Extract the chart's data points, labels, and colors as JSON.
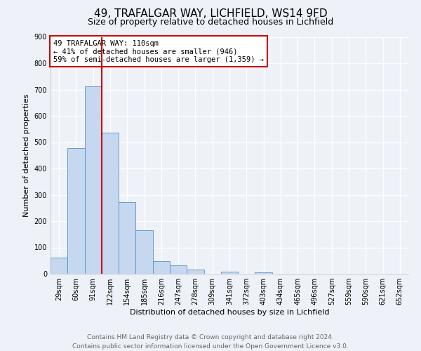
{
  "title": "49, TRAFALGAR WAY, LICHFIELD, WS14 9FD",
  "subtitle": "Size of property relative to detached houses in Lichfield",
  "xlabel": "Distribution of detached houses by size in Lichfield",
  "ylabel": "Number of detached properties",
  "bin_labels": [
    "29sqm",
    "60sqm",
    "91sqm",
    "122sqm",
    "154sqm",
    "185sqm",
    "216sqm",
    "247sqm",
    "278sqm",
    "309sqm",
    "341sqm",
    "372sqm",
    "403sqm",
    "434sqm",
    "465sqm",
    "496sqm",
    "527sqm",
    "559sqm",
    "590sqm",
    "621sqm",
    "652sqm"
  ],
  "bar_values": [
    62,
    478,
    713,
    537,
    271,
    165,
    47,
    33,
    15,
    0,
    8,
    0,
    6,
    0,
    0,
    0,
    0,
    0,
    0,
    0,
    0
  ],
  "bar_color": "#c5d8f0",
  "bar_edge_color": "#5a8fc3",
  "vline_color": "#cc0000",
  "vline_x": 2.5,
  "ylim": [
    0,
    900
  ],
  "yticks": [
    0,
    100,
    200,
    300,
    400,
    500,
    600,
    700,
    800,
    900
  ],
  "annotation_text": "49 TRAFALGAR WAY: 110sqm\n← 41% of detached houses are smaller (946)\n59% of semi-detached houses are larger (1,359) →",
  "annotation_box_color": "#ffffff",
  "annotation_box_edge": "#cc0000",
  "footer_line1": "Contains HM Land Registry data © Crown copyright and database right 2024.",
  "footer_line2": "Contains public sector information licensed under the Open Government Licence v3.0.",
  "background_color": "#eef2f8",
  "grid_color": "#ffffff",
  "title_fontsize": 11,
  "subtitle_fontsize": 9,
  "axis_label_fontsize": 8,
  "tick_fontsize": 7,
  "annotation_fontsize": 7.5,
  "footer_fontsize": 6.5
}
